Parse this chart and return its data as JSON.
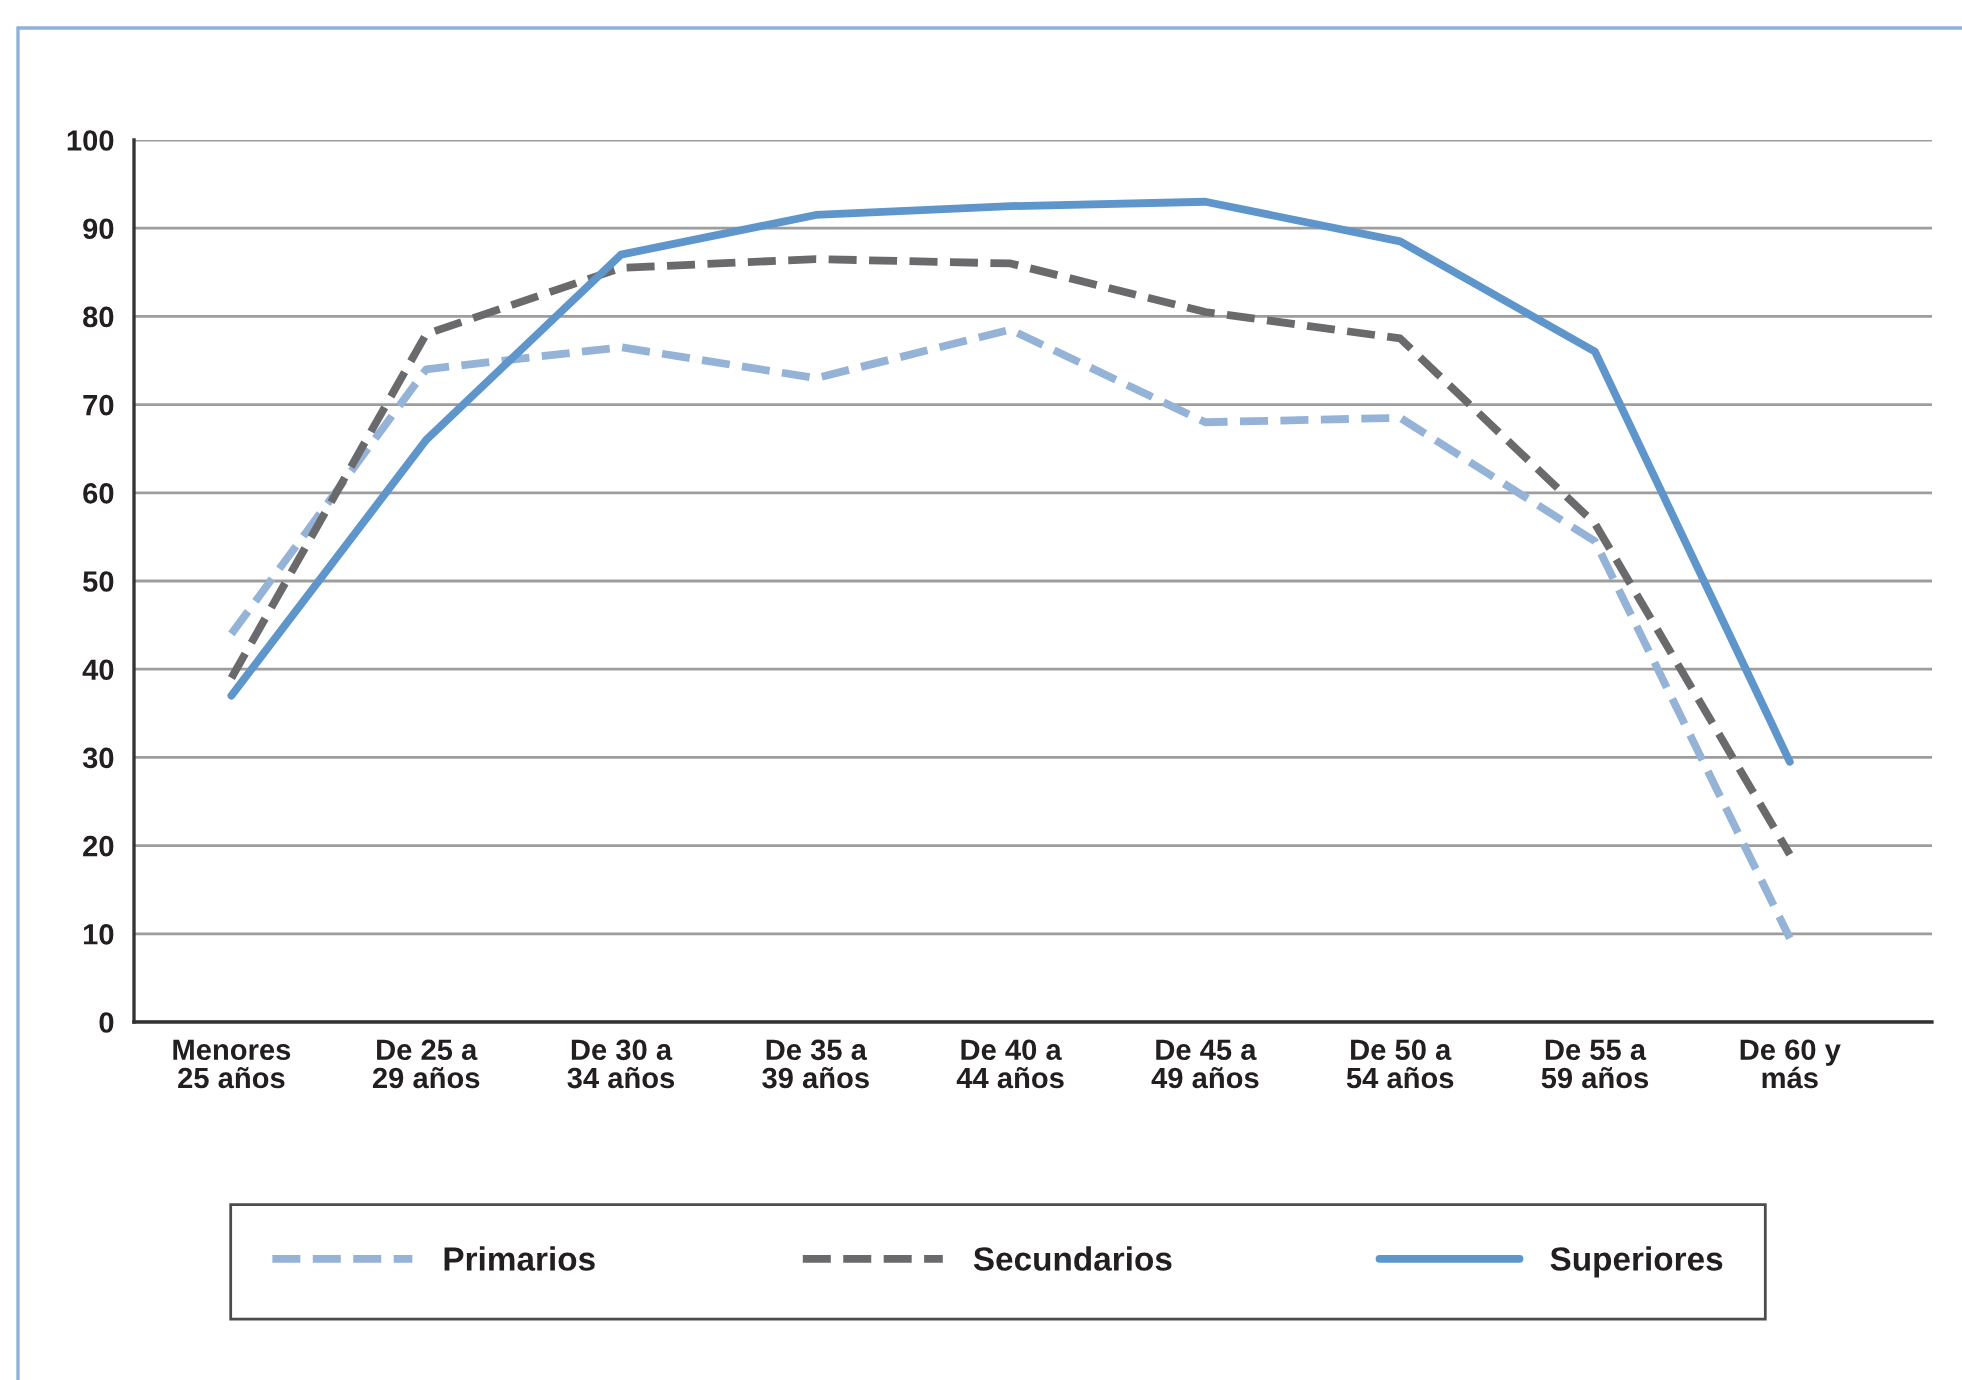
{
  "chart_data": {
    "type": "line",
    "categories": [
      "Menores\n25 años",
      "De 25 a\n29 años",
      "De 30 a\n34 años",
      "De 35 a\n39 años",
      "De 40 a\n44 años",
      "De 45 a\n49 años",
      "De 50 a\n54 años",
      "De 55 a\n59 años",
      "De 60 y\nmás"
    ],
    "series": [
      {
        "name": "Primarios",
        "color": "#95b3d7",
        "line_style": "dashed",
        "values": [
          44,
          74,
          76.5,
          73,
          78.5,
          68,
          68.5,
          54.5,
          9.5
        ]
      },
      {
        "name": "Secundarios",
        "color": "#6a6a6d",
        "line_style": "dashed",
        "values": [
          39,
          78,
          85.5,
          86.5,
          86,
          80.5,
          77.5,
          56.5,
          19
        ]
      },
      {
        "name": "Superiores",
        "color": "#5e96cb",
        "line_style": "solid",
        "values": [
          37,
          66,
          87,
          91.5,
          92.5,
          93,
          88.5,
          76,
          29.5
        ]
      }
    ],
    "ylim": [
      0,
      100
    ],
    "yticks": [
      0,
      10,
      20,
      30,
      40,
      50,
      60,
      70,
      80,
      90,
      100
    ],
    "grid": "y",
    "legend": "bottom",
    "marker": "none"
  }
}
